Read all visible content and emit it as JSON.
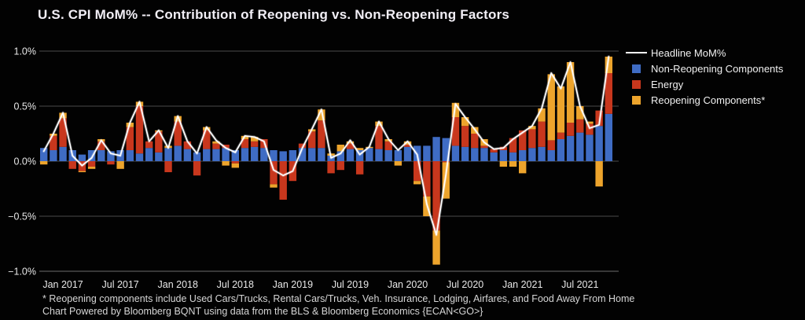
{
  "title": "U.S. CPI MoM% -- Contribution of Reopening vs. Non-Reopening Factors",
  "footnotes": [
    "* Reopening components include Used Cars/Trucks, Rental Cars/Trucks, Veh. Insurance, Lodging, Airfares, and Food Away From Home",
    "Chart Powered by Bloomberg BQNT using data from the BLS & Bloomberg Economics    {ECAN<GO>}"
  ],
  "colors": {
    "background": "#020202",
    "non_reopening": "#3f6cc4",
    "energy": "#c8371d",
    "reopening": "#eda42c",
    "headline_line": "#ffffff",
    "gridline": "#4a4a4a",
    "tick_text": "#e8e8e8"
  },
  "legend": {
    "items": [
      {
        "id": "headline",
        "label": "Headline MoM%",
        "type": "line",
        "color": "#ffffff"
      },
      {
        "id": "non-reopening",
        "label": "Non-Reopening Components",
        "type": "swatch",
        "color": "#3f6cc4"
      },
      {
        "id": "energy",
        "label": "Energy",
        "type": "swatch",
        "color": "#c8371d"
      },
      {
        "id": "reopening",
        "label": "Reopening Components*",
        "type": "swatch",
        "color": "#eda42c"
      }
    ]
  },
  "chart_data": {
    "type": "bar",
    "subtype": "stacked-bars-with-line-overlay",
    "title": "U.S. CPI MoM% -- Contribution of Reopening vs. Non-Reopening Factors",
    "xlabel": "",
    "ylabel": "",
    "ylim": [
      -1.07,
      1.07
    ],
    "grid": "horizontal",
    "legend_position": "right",
    "categories": [
      "Nov 2016",
      "Dec 2016",
      "Jan 2017",
      "Feb 2017",
      "Mar 2017",
      "Apr 2017",
      "May 2017",
      "Jun 2017",
      "Jul 2017",
      "Aug 2017",
      "Sep 2017",
      "Oct 2017",
      "Nov 2017",
      "Dec 2017",
      "Jan 2018",
      "Feb 2018",
      "Mar 2018",
      "Apr 2018",
      "May 2018",
      "Jun 2018",
      "Jul 2018",
      "Aug 2018",
      "Sep 2018",
      "Oct 2018",
      "Nov 2018",
      "Dec 2018",
      "Jan 2019",
      "Feb 2019",
      "Mar 2019",
      "Apr 2019",
      "May 2019",
      "Jun 2019",
      "Jul 2019",
      "Aug 2019",
      "Sep 2019",
      "Oct 2019",
      "Nov 2019",
      "Dec 2019",
      "Jan 2020",
      "Feb 2020",
      "Mar 2020",
      "Apr 2020",
      "May 2020",
      "Jun 2020",
      "Jul 2020",
      "Aug 2020",
      "Sep 2020",
      "Oct 2020",
      "Nov 2020",
      "Dec 2020",
      "Jan 2021",
      "Feb 2021",
      "Mar 2021",
      "Apr 2021",
      "May 2021",
      "Jun 2021",
      "Jul 2021",
      "Aug 2021",
      "Sep 2021",
      "Oct 2021"
    ],
    "series": [
      {
        "name": "Non-Reopening Components",
        "color": "#3f6cc4",
        "values": [
          0.12,
          0.1,
          0.13,
          0.1,
          0.06,
          0.1,
          0.1,
          0.09,
          0.1,
          0.1,
          0.07,
          0.12,
          0.08,
          0.12,
          0.14,
          0.11,
          0.08,
          0.11,
          0.11,
          0.12,
          0.1,
          0.12,
          0.13,
          0.12,
          0.1,
          0.09,
          0.1,
          0.12,
          0.12,
          0.12,
          0.05,
          0.09,
          0.11,
          0.1,
          0.12,
          0.11,
          0.1,
          0.1,
          0.13,
          0.14,
          0.14,
          0.22,
          0.21,
          0.14,
          0.13,
          0.12,
          0.12,
          0.08,
          0.1,
          0.08,
          0.1,
          0.12,
          0.13,
          0.1,
          0.2,
          0.23,
          0.26,
          0.24,
          0.32,
          0.43
        ]
      },
      {
        "name": "Energy",
        "color": "#c8371d",
        "values": [
          0.0,
          0.13,
          0.26,
          -0.07,
          -0.09,
          -0.05,
          0.08,
          -0.03,
          0.0,
          0.21,
          0.43,
          0.06,
          0.19,
          -0.1,
          0.22,
          0.07,
          -0.13,
          0.17,
          0.05,
          0.03,
          -0.02,
          0.08,
          0.05,
          0.08,
          -0.21,
          -0.35,
          -0.18,
          0.04,
          0.15,
          0.25,
          -0.11,
          -0.08,
          0.05,
          -0.12,
          0.0,
          0.21,
          0.08,
          0.0,
          0.02,
          -0.18,
          -0.32,
          -0.63,
          -0.01,
          0.26,
          0.19,
          0.13,
          0.02,
          0.03,
          0.03,
          0.13,
          0.18,
          0.17,
          0.23,
          0.09,
          0.06,
          0.12,
          0.12,
          0.1,
          0.14,
          0.37
        ]
      },
      {
        "name": "Reopening Components*",
        "color": "#eda42c",
        "values": [
          -0.03,
          0.02,
          0.05,
          0.0,
          -0.01,
          -0.02,
          0.02,
          0.0,
          -0.07,
          0.04,
          0.04,
          0.0,
          0.01,
          0.02,
          0.05,
          0.0,
          0.0,
          0.03,
          0.02,
          -0.04,
          -0.04,
          0.03,
          0.04,
          0.0,
          -0.03,
          0.0,
          0.0,
          0.0,
          0.02,
          0.1,
          0.02,
          0.06,
          0.02,
          0.02,
          0.01,
          0.04,
          0.02,
          -0.04,
          0.03,
          -0.03,
          -0.18,
          -0.31,
          -0.33,
          0.13,
          0.08,
          0.06,
          0.06,
          0.0,
          -0.05,
          -0.05,
          -0.11,
          0.03,
          0.12,
          0.6,
          0.42,
          0.55,
          0.12,
          0.02,
          -0.23,
          0.15
        ]
      }
    ],
    "line_series": {
      "name": "Headline MoM%",
      "color": "#ffffff",
      "values": [
        0.09,
        0.25,
        0.44,
        0.05,
        -0.04,
        0.03,
        0.19,
        0.07,
        0.05,
        0.35,
        0.54,
        0.18,
        0.28,
        0.12,
        0.41,
        0.18,
        0.07,
        0.31,
        0.19,
        0.12,
        0.08,
        0.23,
        0.22,
        0.18,
        -0.08,
        -0.13,
        -0.09,
        0.12,
        0.29,
        0.47,
        0.03,
        0.07,
        0.19,
        0.06,
        0.13,
        0.36,
        0.2,
        0.1,
        0.18,
        0.06,
        -0.39,
        -0.67,
        -0.12,
        0.52,
        0.4,
        0.29,
        0.17,
        0.11,
        0.12,
        0.2,
        0.26,
        0.32,
        0.48,
        0.8,
        0.66,
        0.9,
        0.5,
        0.3,
        0.33,
        0.95
      ]
    },
    "y_ticks": [
      {
        "value": 1.0,
        "label": "1.0%"
      },
      {
        "value": 0.5,
        "label": "0.5%"
      },
      {
        "value": 0.0,
        "label": "0.0%"
      },
      {
        "value": -0.5,
        "label": "−0.5%"
      },
      {
        "value": -1.0,
        "label": "−1.0%"
      }
    ],
    "x_ticks": [
      {
        "index": 2,
        "label": "Jan 2017"
      },
      {
        "index": 8,
        "label": "Jul 2017"
      },
      {
        "index": 14,
        "label": "Jan 2018"
      },
      {
        "index": 20,
        "label": "Jul 2018"
      },
      {
        "index": 26,
        "label": "Jan 2019"
      },
      {
        "index": 32,
        "label": "Jul 2019"
      },
      {
        "index": 38,
        "label": "Jan 2020"
      },
      {
        "index": 44,
        "label": "Jul 2020"
      },
      {
        "index": 50,
        "label": "Jan 2021"
      },
      {
        "index": 56,
        "label": "Jul 2021"
      }
    ]
  }
}
